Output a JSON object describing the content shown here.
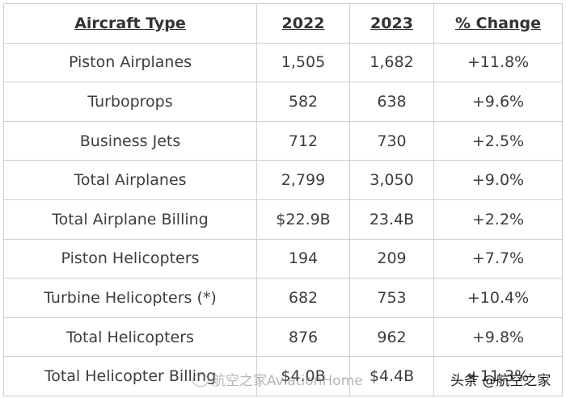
{
  "table": {
    "headers": [
      "Aircraft Type",
      "2022",
      "2023",
      "% Change"
    ],
    "rows": [
      [
        "Piston Airplanes",
        "1,505",
        "1,682",
        "+11.8%"
      ],
      [
        "Turboprops",
        "582",
        "638",
        "+9.6%"
      ],
      [
        "Business Jets",
        "712",
        "730",
        "+2.5%"
      ],
      [
        "Total Airplanes",
        "2,799",
        "3,050",
        "+9.0%"
      ],
      [
        "Total Airplane Billing",
        "$22.9B",
        "23.4B",
        "+2.2%"
      ],
      [
        "Piston Helicopters",
        "194",
        "209",
        "+7.7%"
      ],
      [
        "Turbine Helicopters (*)",
        "682",
        "753",
        "+10.4%"
      ],
      [
        "Total Helicopters",
        "876",
        "962",
        "+9.8%"
      ],
      [
        "Total Helicopter Billing",
        "$4.0B",
        "$4.4B",
        "+11.3%"
      ]
    ]
  },
  "watermarks": {
    "left": "航空之家AviationHome",
    "right": "头条 @航空之家"
  }
}
